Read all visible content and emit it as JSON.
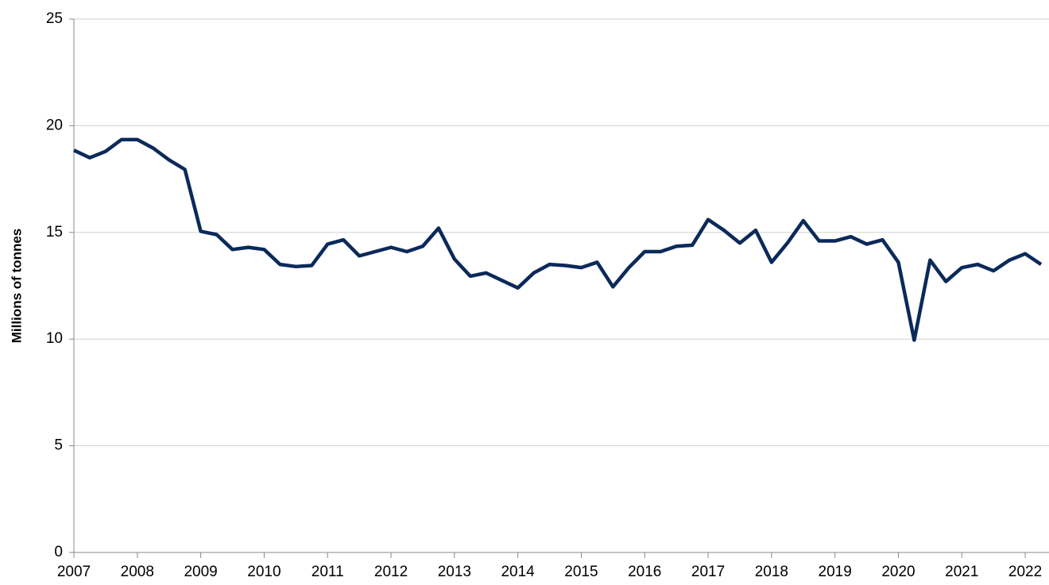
{
  "chart_data": {
    "type": "line",
    "y_label": "Millions of tonnes",
    "x": [
      2007,
      2007.25,
      2007.5,
      2007.75,
      2008,
      2008.25,
      2008.5,
      2008.75,
      2009,
      2009.25,
      2009.5,
      2009.75,
      2010,
      2010.25,
      2010.5,
      2010.75,
      2011,
      2011.25,
      2011.5,
      2011.75,
      2012,
      2012.25,
      2012.5,
      2012.75,
      2013,
      2013.25,
      2013.5,
      2013.75,
      2014,
      2014.25,
      2014.5,
      2014.75,
      2015,
      2015.25,
      2015.5,
      2015.75,
      2016,
      2016.25,
      2016.5,
      2016.75,
      2017,
      2017.25,
      2017.5,
      2017.75,
      2018,
      2018.25,
      2018.5,
      2018.75,
      2019,
      2019.25,
      2019.5,
      2019.75,
      2020,
      2020.25,
      2020.5,
      2020.75,
      2021,
      2021.25,
      2021.5,
      2021.75,
      2022,
      2022.25
    ],
    "series": [
      {
        "color": "#0b2a5a",
        "values": [
          18.85,
          18.5,
          18.8,
          19.35,
          19.35,
          18.95,
          18.4,
          17.95,
          15.05,
          14.9,
          14.2,
          14.3,
          14.2,
          13.5,
          13.4,
          13.45,
          14.45,
          14.65,
          13.9,
          14.1,
          14.3,
          14.1,
          14.35,
          15.2,
          13.75,
          12.95,
          13.1,
          12.75,
          12.4,
          13.1,
          13.5,
          13.45,
          13.35,
          13.6,
          12.45,
          13.35,
          14.1,
          14.1,
          14.35,
          14.4,
          15.6,
          15.1,
          14.5,
          15.1,
          13.6,
          14.5,
          15.55,
          14.6,
          14.6,
          14.8,
          14.45,
          14.65,
          13.6,
          9.95,
          13.7,
          12.7,
          13.35,
          13.5,
          13.2,
          13.7,
          14.0,
          13.5
        ]
      }
    ],
    "xlim": [
      2007,
      2022.375
    ],
    "xticks": [
      2007,
      2008,
      2009,
      2010,
      2011,
      2012,
      2013,
      2014,
      2015,
      2016,
      2017,
      2018,
      2019,
      2020,
      2021,
      2022
    ],
    "ylim": [
      0,
      25
    ],
    "yticks": [
      0,
      5,
      10,
      15,
      20,
      25
    ],
    "grid": true
  }
}
